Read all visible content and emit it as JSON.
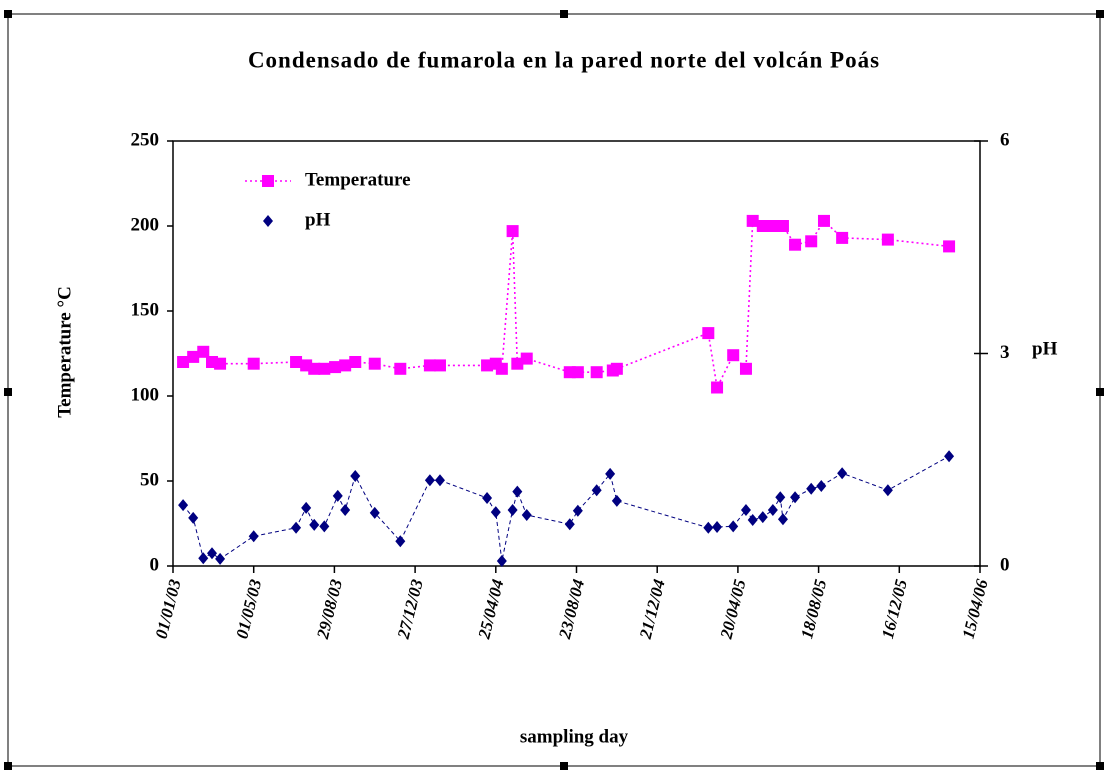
{
  "chart_data": {
    "type": "line",
    "title": "Condensado de fumarola en la pared norte del volcán Poás",
    "x_label": "sampling day",
    "y_label": "Temperature °C",
    "y2_label": "pH",
    "xlim": [
      "2003-01-01",
      "2006-04-15"
    ],
    "xticks": [
      {
        "value": "2003-01-01",
        "label": "01/01/03"
      },
      {
        "value": "2003-05-01",
        "label": "01/05/03"
      },
      {
        "value": "2003-08-29",
        "label": "29/08/03"
      },
      {
        "value": "2003-12-27",
        "label": "27/12/03"
      },
      {
        "value": "2004-04-25",
        "label": "25/04/04"
      },
      {
        "value": "2004-08-23",
        "label": "23/08/04"
      },
      {
        "value": "2004-12-21",
        "label": "21/12/04"
      },
      {
        "value": "2005-04-20",
        "label": "20/04/05"
      },
      {
        "value": "2005-08-18",
        "label": "18/08/05"
      },
      {
        "value": "2005-12-16",
        "label": "16/12/05"
      },
      {
        "value": "2006-04-15",
        "label": "15/04/06"
      }
    ],
    "ylim": [
      0,
      250
    ],
    "yticks": [
      0,
      50,
      100,
      150,
      200,
      250
    ],
    "y2lim": [
      0,
      6
    ],
    "y2ticks": [
      0,
      3,
      6
    ],
    "legend": "upper left",
    "series": [
      {
        "name": "Temperature",
        "color": "#ff00ff",
        "marker": "square",
        "line": "dotted",
        "x": [
          "2003-01-16",
          "2003-01-31",
          "2003-02-15",
          "2003-02-28",
          "2003-03-12",
          "2003-05-01",
          "2003-07-03",
          "2003-07-18",
          "2003-07-30",
          "2003-08-14",
          "2003-08-30",
          "2003-09-14",
          "2003-09-29",
          "2003-10-28",
          "2003-12-05",
          "2004-01-18",
          "2004-02-02",
          "2004-04-12",
          "2004-04-25",
          "2004-05-04",
          "2004-05-20",
          "2004-05-27",
          "2004-06-10",
          "2004-08-13",
          "2004-08-25",
          "2004-09-22",
          "2004-10-16",
          "2004-10-22",
          "2005-03-07",
          "2005-03-20",
          "2005-04-13",
          "2005-05-02",
          "2005-05-12",
          "2005-05-27",
          "2005-06-11",
          "2005-06-26",
          "2005-07-14",
          "2005-08-07",
          "2005-08-26",
          "2005-09-22",
          "2005-11-29",
          "2006-02-28"
        ],
        "values": [
          120,
          123,
          126,
          120,
          119,
          119,
          120,
          118,
          116,
          116,
          117,
          118,
          120,
          119,
          116,
          118,
          118,
          118,
          119,
          116,
          197,
          119,
          122,
          114,
          114,
          114,
          115,
          116,
          137,
          105,
          124,
          116,
          203,
          200,
          200,
          200,
          189,
          191,
          203,
          193,
          192,
          188
        ]
      },
      {
        "name": "pH",
        "color": "#000080",
        "marker": "diamond",
        "line": "dashed",
        "axis": "y2",
        "x": [
          "2003-01-16",
          "2003-01-31",
          "2003-02-15",
          "2003-02-28",
          "2003-03-12",
          "2003-05-01",
          "2003-07-03",
          "2003-07-18",
          "2003-07-30",
          "2003-08-14",
          "2003-09-03",
          "2003-09-14",
          "2003-09-29",
          "2003-10-28",
          "2003-12-05",
          "2004-01-18",
          "2004-02-02",
          "2004-04-12",
          "2004-04-25",
          "2004-05-04",
          "2004-05-20",
          "2004-05-27",
          "2004-06-10",
          "2004-08-13",
          "2004-08-25",
          "2004-09-22",
          "2004-10-12",
          "2004-10-22",
          "2005-03-07",
          "2005-03-20",
          "2005-04-13",
          "2005-05-02",
          "2005-05-12",
          "2005-05-27",
          "2005-06-11",
          "2005-06-22",
          "2005-06-26",
          "2005-07-14",
          "2005-08-07",
          "2005-08-22",
          "2005-09-22",
          "2005-11-29",
          "2006-02-28"
        ],
        "values": [
          0.86,
          0.68,
          0.11,
          0.18,
          0.1,
          0.42,
          0.54,
          0.82,
          0.58,
          0.56,
          0.99,
          0.79,
          1.27,
          0.75,
          0.35,
          1.21,
          1.21,
          0.96,
          0.76,
          0.07,
          0.79,
          1.05,
          0.72,
          0.59,
          0.78,
          1.07,
          1.3,
          0.92,
          0.54,
          0.55,
          0.56,
          0.79,
          0.65,
          0.69,
          0.79,
          0.97,
          0.66,
          0.97,
          1.09,
          1.13,
          1.31,
          1.07,
          1.55
        ]
      }
    ]
  }
}
